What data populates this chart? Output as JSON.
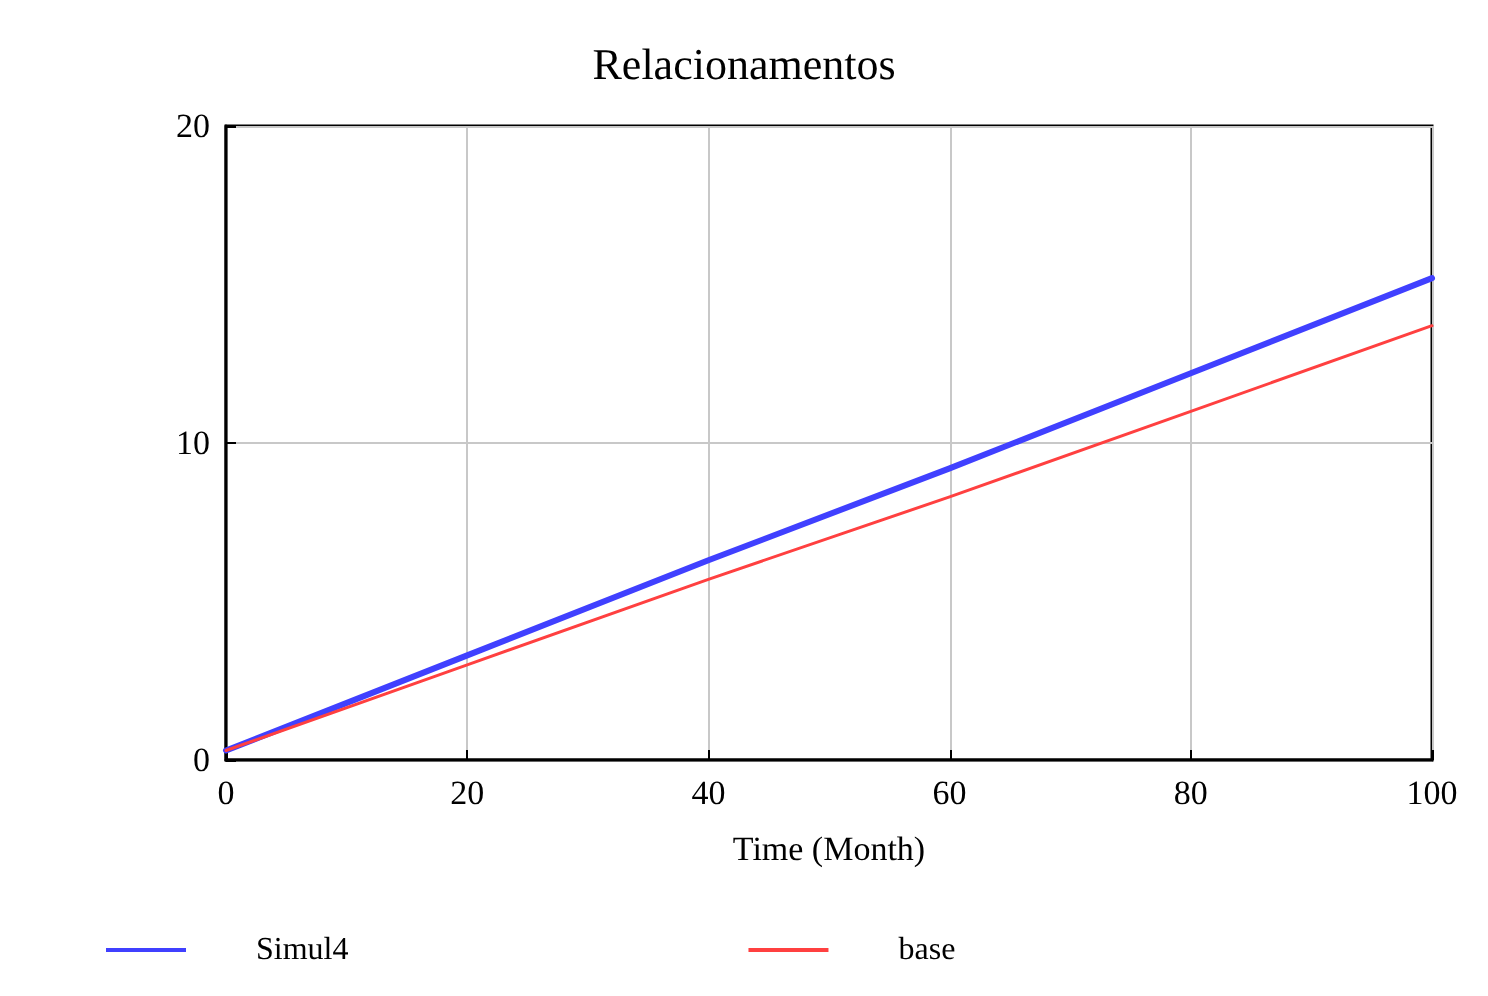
{
  "chart_data": {
    "type": "line",
    "title": "Relacionamentos",
    "xlabel": "Time (Month)",
    "x": [
      0,
      20,
      40,
      60,
      80,
      100
    ],
    "series": [
      {
        "name": "Simul4",
        "color": "#4040ff",
        "values": [
          0.3,
          3.3,
          6.3,
          9.2,
          12.2,
          15.2
        ]
      },
      {
        "name": "base",
        "color": "#ff4040",
        "values": [
          0.3,
          3.0,
          5.7,
          8.3,
          11.0,
          13.7
        ]
      }
    ],
    "xlim": [
      0,
      100
    ],
    "xticks": [
      0,
      20,
      40,
      60,
      80,
      100
    ],
    "ylim": [
      0,
      20
    ],
    "yticks": [
      0,
      10,
      20
    ],
    "grid": true,
    "legend": "bottom",
    "marker": "none",
    "line_style": "solid"
  }
}
